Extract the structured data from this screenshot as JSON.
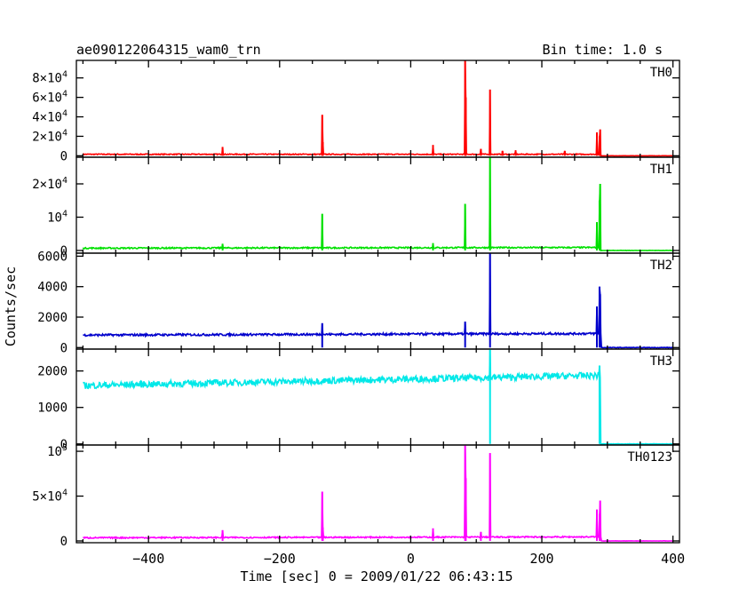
{
  "header": {
    "title": "ae090122064315_wam0_trn",
    "bin_time": "Bin time: 1.0 s"
  },
  "chart_data": {
    "type": "line",
    "xlabel": "Time [sec] 0 = 2009/01/22 06:43:15",
    "ylabel": "Counts/sec",
    "xlim": [
      -510,
      410
    ],
    "x_ticks": [
      -400,
      -200,
      0,
      200,
      400
    ],
    "x_tick_labels": [
      "−400",
      "−200",
      "0",
      "200",
      "400"
    ],
    "panels": [
      {
        "name": "TH0",
        "color": "#ff0000",
        "ylim": [
          -1500,
          98000
        ],
        "ticks": [
          0,
          20000,
          40000,
          60000,
          80000
        ],
        "tick_labels": [
          {
            "mant": "0",
            "exp": ""
          },
          {
            "mant": "2×10",
            "exp": "4"
          },
          {
            "mant": "4×10",
            "exp": "4"
          },
          {
            "mant": "6×10",
            "exp": "4"
          },
          {
            "mant": "8×10",
            "exp": "4"
          }
        ],
        "segments": [
          {
            "x0": -500,
            "x1": 290,
            "base0": 1500,
            "base1": 1500,
            "noise": 500
          },
          {
            "x0": 290,
            "x1": 400,
            "base0": 0,
            "base1": 0,
            "noise": 100
          }
        ],
        "spikes": [
          {
            "x": -287,
            "y": 9000
          },
          {
            "x": -135,
            "y": 42000
          },
          {
            "x": -134,
            "y": 14000
          },
          {
            "x": 34,
            "y": 11000
          },
          {
            "x": 83,
            "y": 98000
          },
          {
            "x": 84,
            "y": 60000
          },
          {
            "x": 107,
            "y": 7000
          },
          {
            "x": 121,
            "y": 68000
          },
          {
            "x": 140,
            "y": 5000
          },
          {
            "x": 160,
            "y": 5500
          },
          {
            "x": 235,
            "y": 5000
          },
          {
            "x": 284,
            "y": 24000
          },
          {
            "x": 289,
            "y": 27000
          },
          {
            "x": 288,
            "y": 20000
          }
        ]
      },
      {
        "name": "TH1",
        "color": "#00e000",
        "ylim": [
          -800,
          28000
        ],
        "ticks": [
          0,
          10000,
          20000
        ],
        "tick_labels": [
          {
            "mant": "0",
            "exp": ""
          },
          {
            "mant": "10",
            "exp": "4"
          },
          {
            "mant": "2×10",
            "exp": "4"
          }
        ],
        "segments": [
          {
            "x0": -500,
            "x1": 290,
            "base0": 700,
            "base1": 900,
            "noise": 200
          },
          {
            "x0": 290,
            "x1": 400,
            "base0": 0,
            "base1": 0,
            "noise": 50
          }
        ],
        "spikes": [
          {
            "x": -287,
            "y": 2000
          },
          {
            "x": -135,
            "y": 11000
          },
          {
            "x": 34,
            "y": 2200
          },
          {
            "x": 83,
            "y": 14000
          },
          {
            "x": 121,
            "y": 28000
          },
          {
            "x": 284,
            "y": 8500
          },
          {
            "x": 289,
            "y": 20000
          },
          {
            "x": 288,
            "y": 15000
          }
        ]
      },
      {
        "name": "TH2",
        "color": "#0000cc",
        "ylim": [
          -100,
          6200
        ],
        "ticks": [
          0,
          2000,
          4000,
          6000
        ],
        "tick_labels": [
          {
            "mant": "0",
            "exp": ""
          },
          {
            "mant": "2000",
            "exp": ""
          },
          {
            "mant": "4000",
            "exp": ""
          },
          {
            "mant": "6000",
            "exp": ""
          }
        ],
        "segments": [
          {
            "x0": -500,
            "x1": 290,
            "base0": 820,
            "base1": 920,
            "noise": 70
          },
          {
            "x0": 291,
            "x1": 400,
            "base0": 0,
            "base1": 0,
            "noise": 20
          }
        ],
        "spikes": [
          {
            "x": -135,
            "y": 1600
          },
          {
            "x": 83,
            "y": 1700
          },
          {
            "x": 121,
            "y": 6200
          },
          {
            "x": 284,
            "y": 2700
          },
          {
            "x": 288,
            "y": 4000
          },
          {
            "x": 289,
            "y": 3500
          }
        ]
      },
      {
        "name": "TH3",
        "color": "#00e8e8",
        "ylim": [
          -30,
          2600
        ],
        "ticks": [
          0,
          1000,
          2000
        ],
        "tick_labels": [
          {
            "mant": "0",
            "exp": ""
          },
          {
            "mant": "1000",
            "exp": ""
          },
          {
            "mant": "2000",
            "exp": ""
          }
        ],
        "segments": [
          {
            "x0": -500,
            "x1": 289,
            "base0": 1600,
            "base1": 1880,
            "noise": 90
          },
          {
            "x0": 290,
            "x1": 400,
            "base0": 0,
            "base1": 0,
            "noise": 5
          }
        ],
        "spikes": [
          {
            "x": 121,
            "y": 2600
          },
          {
            "x": 288,
            "y": 2150
          }
        ]
      },
      {
        "name": "TH0123",
        "color": "#ff00ff",
        "ylim": [
          -2000,
          107000
        ],
        "ticks": [
          0,
          50000,
          100000
        ],
        "tick_labels": [
          {
            "mant": "0",
            "exp": ""
          },
          {
            "mant": "5×10",
            "exp": "4"
          },
          {
            "mant": "10",
            "exp": "5"
          }
        ],
        "segments": [
          {
            "x0": -500,
            "x1": 290,
            "base0": 3500,
            "base1": 4500,
            "noise": 700
          },
          {
            "x0": 291,
            "x1": 400,
            "base0": 0,
            "base1": 0,
            "noise": 150
          }
        ],
        "spikes": [
          {
            "x": -287,
            "y": 12000
          },
          {
            "x": -135,
            "y": 55000
          },
          {
            "x": -134,
            "y": 15000
          },
          {
            "x": 34,
            "y": 14000
          },
          {
            "x": 83,
            "y": 107000
          },
          {
            "x": 84,
            "y": 70000
          },
          {
            "x": 107,
            "y": 10000
          },
          {
            "x": 121,
            "y": 98000
          },
          {
            "x": 284,
            "y": 35000
          },
          {
            "x": 289,
            "y": 45000
          },
          {
            "x": 288,
            "y": 30000
          }
        ]
      }
    ]
  }
}
